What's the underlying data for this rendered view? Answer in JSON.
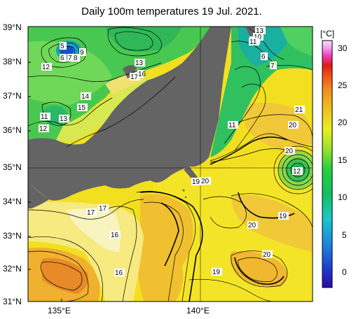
{
  "title": "Daily 100m temperatures 19 Jul. 2021.",
  "map": {
    "lat_labels": [
      "39°N",
      "38°N",
      "37°N",
      "36°N",
      "35°N",
      "34°N",
      "33°N",
      "32°N",
      "31°N"
    ],
    "lon_labels": [
      "135°E",
      "140°E"
    ],
    "lat_range": [
      31,
      39
    ],
    "lon_range": [
      134,
      144
    ]
  },
  "colorbar": {
    "unit": "[°C]",
    "ticks": [
      "30",
      "25",
      "20",
      "15",
      "10",
      "5",
      "0"
    ],
    "range": [
      -2,
      31
    ],
    "colors": [
      "#2a0aa0",
      "#1f3fd0",
      "#1a8ae0",
      "#18c8c8",
      "#12c060",
      "#28d040",
      "#8ae030",
      "#e8f020",
      "#f0c020",
      "#f09020",
      "#f05018",
      "#e01818",
      "#f040c0",
      "#f0a0f0",
      "#f8e0f8"
    ]
  },
  "isotherm_labels": [
    "5",
    "6",
    "7",
    "8",
    "9",
    "12",
    "13",
    "17",
    "16",
    "14",
    "15",
    "11",
    "12",
    "13",
    "12",
    "13",
    "10",
    "11",
    "6",
    "7",
    "11",
    "21",
    "20",
    "20",
    "12",
    "19",
    "20",
    "17",
    "17",
    "16",
    "16",
    "20",
    "19",
    "20",
    "19"
  ]
}
